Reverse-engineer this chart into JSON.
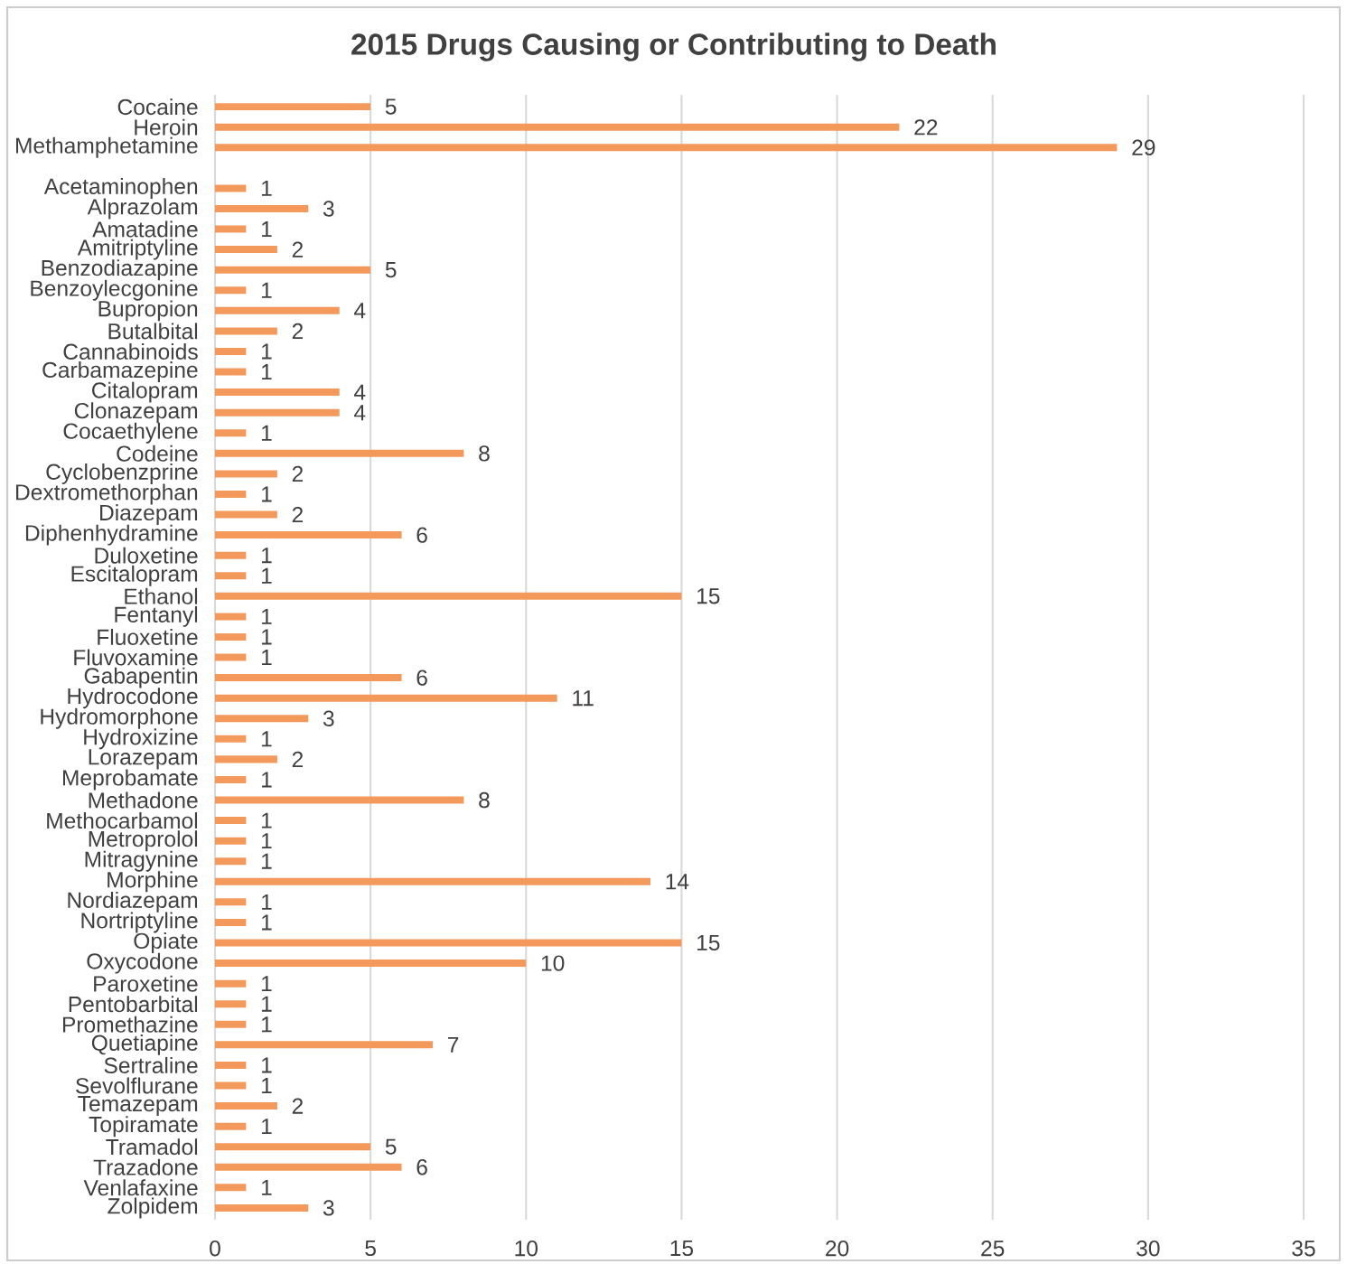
{
  "chart_data": {
    "type": "bar",
    "orientation": "horizontal",
    "title": "2015 Drugs Causing or Contributing to Death",
    "categories": [
      "Cocaine",
      "Heroin",
      "Methamphetamine",
      null,
      "Acetaminophen",
      "Alprazolam",
      "Amatadine",
      "Amitriptyline",
      "Benzodiazapine",
      "Benzoylecgonine",
      "Bupropion",
      "Butalbital",
      "Cannabinoids",
      "Carbamazepine",
      "Citalopram",
      "Clonazepam",
      "Cocaethylene",
      "Codeine",
      "Cyclobenzprine",
      "Dextromethorphan",
      "Diazepam",
      "Diphenhydramine",
      "Duloxetine",
      "Escitalopram",
      "Ethanol",
      "Fentanyl",
      "Fluoxetine",
      "Fluvoxamine",
      "Gabapentin",
      "Hydrocodone",
      "Hydromorphone",
      "Hydroxizine",
      "Lorazepam",
      "Meprobamate",
      "Methadone",
      "Methocarbamol",
      "Metroprolol",
      "Mitragynine",
      "Morphine",
      "Nordiazepam",
      "Nortriptyline",
      "Opiate",
      "Oxycodone",
      "Paroxetine",
      "Pentobarbital",
      "Promethazine",
      "Quetiapine",
      "Sertraline",
      "Sevolflurane",
      "Temazepam",
      "Topiramate",
      "Tramadol",
      "Trazadone",
      "Venlafaxine",
      "Zolpidem"
    ],
    "values": [
      5,
      22,
      29,
      null,
      1,
      3,
      1,
      2,
      5,
      1,
      4,
      2,
      1,
      1,
      4,
      4,
      1,
      8,
      2,
      1,
      2,
      6,
      1,
      1,
      15,
      1,
      1,
      1,
      6,
      11,
      3,
      1,
      2,
      1,
      8,
      1,
      1,
      1,
      14,
      1,
      1,
      15,
      10,
      1,
      1,
      1,
      7,
      1,
      1,
      2,
      1,
      5,
      6,
      1,
      3
    ],
    "color": "#f4995c",
    "data_labels": true,
    "grid": "x",
    "xlim": [
      0,
      35
    ],
    "xticks": [
      0,
      5,
      10,
      15,
      20,
      25,
      30,
      35
    ]
  }
}
